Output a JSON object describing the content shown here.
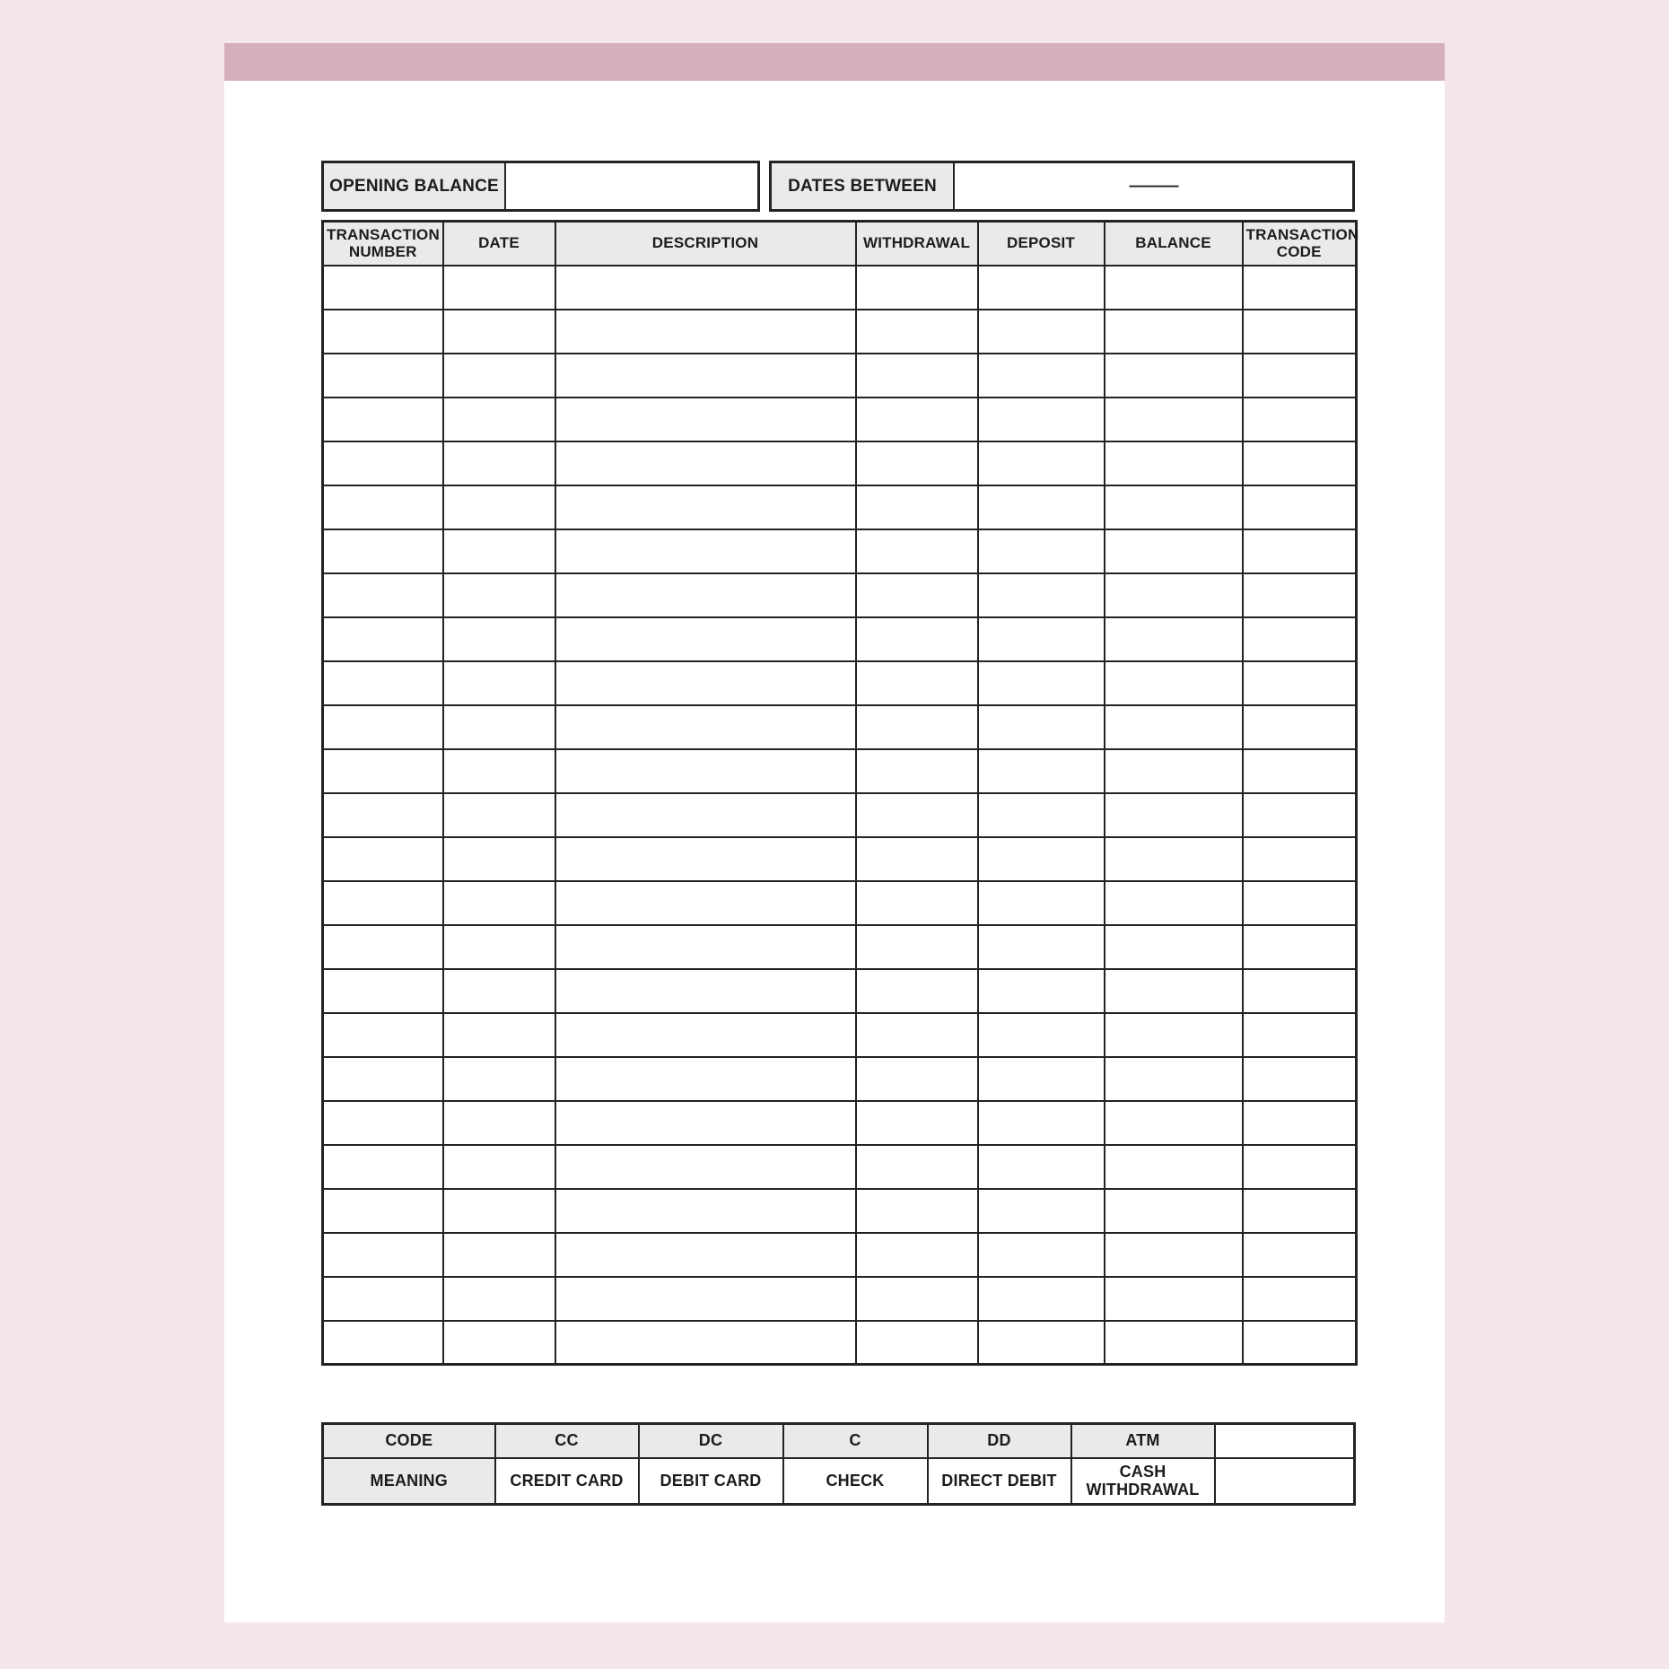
{
  "page": {
    "colors": {
      "background": "#f5e6ea",
      "band": "#d5afbb",
      "cell_grey": "#eaeaea",
      "border": "#232323",
      "text": "#1c1c1c"
    },
    "opening_balance": {
      "label": "OPENING BALANCE",
      "value": ""
    },
    "dates_between": {
      "label": "DATES BETWEEN",
      "value": "———"
    },
    "register_table": {
      "columns": [
        "TRANSACTION NUMBER",
        "DATE",
        "DESCRIPTION",
        "WITHDRAWAL",
        "DEPOSIT",
        "BALANCE",
        "TRANSACTION CODE"
      ],
      "row_count": 25
    },
    "code_key_table": {
      "code_row": [
        "CODE",
        "CC",
        "DC",
        "C",
        "DD",
        "ATM",
        ""
      ],
      "meaning_row": [
        "MEANING",
        "CREDIT CARD",
        "DEBIT CARD",
        "CHECK",
        "DIRECT DEBIT",
        "CASH WITHDRAWAL",
        ""
      ]
    }
  }
}
